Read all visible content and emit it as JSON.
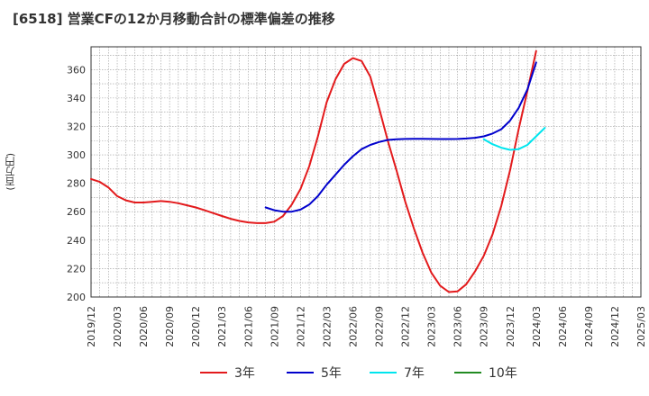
{
  "header": {
    "title": "[6518]  営業CFの12か月移動合計の標準偏差の推移"
  },
  "chart_data": {
    "type": "line",
    "ylabel": "(百万円)",
    "ylim": [
      200,
      376
    ],
    "yticks": [
      200,
      220,
      240,
      260,
      280,
      300,
      320,
      340,
      360
    ],
    "xlim": [
      "2019/12",
      "2025/03"
    ],
    "xticks": [
      "2019/12",
      "2020/03",
      "2020/06",
      "2020/09",
      "2020/12",
      "2021/03",
      "2021/06",
      "2021/09",
      "2021/12",
      "2022/03",
      "2022/06",
      "2022/09",
      "2022/12",
      "2023/03",
      "2023/06",
      "2023/09",
      "2023/12",
      "2024/03",
      "2024/06",
      "2024/09",
      "2024/12",
      "2025/03"
    ],
    "grid": true,
    "legend_position": "bottom",
    "series": [
      {
        "name": "3年",
        "color": "#e31a1c",
        "points": [
          [
            "2019/12",
            283
          ],
          [
            "2020/01",
            281
          ],
          [
            "2020/02",
            277
          ],
          [
            "2020/03",
            271
          ],
          [
            "2020/04",
            268
          ],
          [
            "2020/05",
            266.5
          ],
          [
            "2020/06",
            266.5
          ],
          [
            "2020/07",
            267
          ],
          [
            "2020/08",
            267.5
          ],
          [
            "2020/09",
            267
          ],
          [
            "2020/10",
            266
          ],
          [
            "2020/11",
            264.5
          ],
          [
            "2020/12",
            263
          ],
          [
            "2021/01",
            261
          ],
          [
            "2021/02",
            259
          ],
          [
            "2021/03",
            257
          ],
          [
            "2021/04",
            255
          ],
          [
            "2021/05",
            253.5
          ],
          [
            "2021/06",
            252.5
          ],
          [
            "2021/07",
            252
          ],
          [
            "2021/08",
            252
          ],
          [
            "2021/09",
            253
          ],
          [
            "2021/10",
            257
          ],
          [
            "2021/11",
            265
          ],
          [
            "2021/12",
            276
          ],
          [
            "2022/01",
            292
          ],
          [
            "2022/02",
            313
          ],
          [
            "2022/03",
            337
          ],
          [
            "2022/04",
            353
          ],
          [
            "2022/05",
            364
          ],
          [
            "2022/06",
            368
          ],
          [
            "2022/07",
            366
          ],
          [
            "2022/08",
            355
          ],
          [
            "2022/09",
            333
          ],
          [
            "2022/10",
            310
          ],
          [
            "2022/11",
            289
          ],
          [
            "2022/12",
            267
          ],
          [
            "2023/01",
            248
          ],
          [
            "2023/02",
            231
          ],
          [
            "2023/03",
            217
          ],
          [
            "2023/04",
            208
          ],
          [
            "2023/05",
            203.5
          ],
          [
            "2023/06",
            204
          ],
          [
            "2023/07",
            209
          ],
          [
            "2023/08",
            218
          ],
          [
            "2023/09",
            229
          ],
          [
            "2023/10",
            244
          ],
          [
            "2023/11",
            264
          ],
          [
            "2023/12",
            289
          ],
          [
            "2024/01",
            318
          ],
          [
            "2024/02",
            345
          ],
          [
            "2024/03",
            373
          ]
        ]
      },
      {
        "name": "5年",
        "color": "#0000cc",
        "points": [
          [
            "2021/08",
            263
          ],
          [
            "2021/09",
            261
          ],
          [
            "2021/10",
            260
          ],
          [
            "2021/11",
            260
          ],
          [
            "2021/12",
            261.5
          ],
          [
            "2022/01",
            265
          ],
          [
            "2022/02",
            271
          ],
          [
            "2022/03",
            279
          ],
          [
            "2022/04",
            286
          ],
          [
            "2022/05",
            293
          ],
          [
            "2022/06",
            299
          ],
          [
            "2022/07",
            304
          ],
          [
            "2022/08",
            307
          ],
          [
            "2022/09",
            309
          ],
          [
            "2022/10",
            310.5
          ],
          [
            "2022/11",
            311
          ],
          [
            "2022/12",
            311.2
          ],
          [
            "2023/01",
            311.3
          ],
          [
            "2023/02",
            311.3
          ],
          [
            "2023/03",
            311.2
          ],
          [
            "2023/04",
            311.1
          ],
          [
            "2023/05",
            311.1
          ],
          [
            "2023/06",
            311.2
          ],
          [
            "2023/07",
            311.5
          ],
          [
            "2023/08",
            312
          ],
          [
            "2023/09",
            313
          ],
          [
            "2023/10",
            315
          ],
          [
            "2023/11",
            318
          ],
          [
            "2023/12",
            324
          ],
          [
            "2024/01",
            333
          ],
          [
            "2024/02",
            346
          ],
          [
            "2024/03",
            365
          ]
        ]
      },
      {
        "name": "7年",
        "color": "#00e5ee",
        "points": [
          [
            "2023/09",
            311
          ],
          [
            "2023/10",
            307.5
          ],
          [
            "2023/11",
            305
          ],
          [
            "2023/12",
            303.5
          ],
          [
            "2024/01",
            304
          ],
          [
            "2024/02",
            307
          ],
          [
            "2024/03",
            313
          ],
          [
            "2024/04",
            319
          ]
        ]
      },
      {
        "name": "10年",
        "color": "#228b22",
        "points": []
      }
    ]
  }
}
